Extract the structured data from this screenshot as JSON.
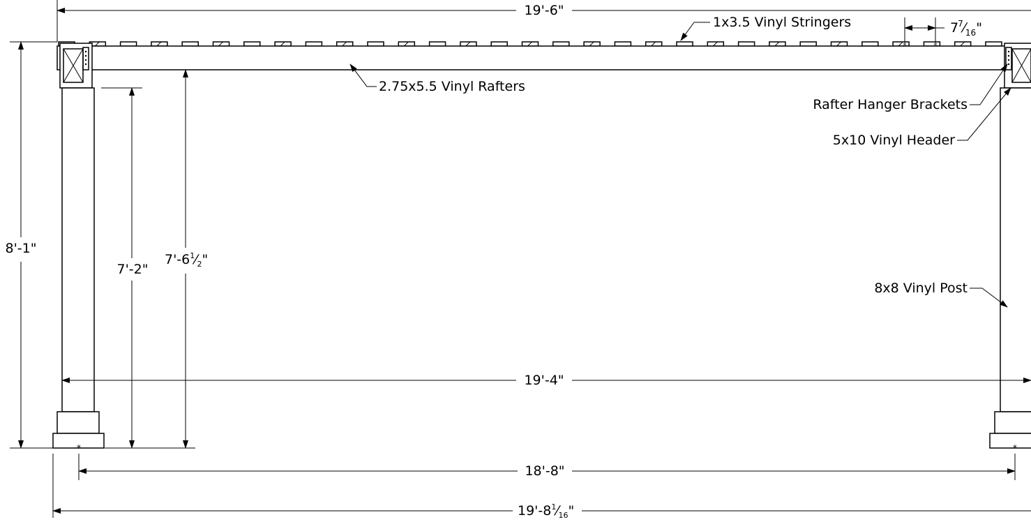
{
  "drawing": {
    "dimensions": {
      "overall_top": "19'-6\"",
      "stringer_spacing_whole": "7",
      "stringer_spacing_num": "7",
      "stringer_spacing_den": "16",
      "stringer_spacing_unit": "\"",
      "overall_height": "8'-1\"",
      "clear_height_main": "7'-2\"",
      "rafter_height_main": "7'-6",
      "rafter_height_num": "1",
      "rafter_height_den": "2",
      "rafter_height_unit": "\"",
      "inner_span": "19'-4\"",
      "post_centers": "18'-8\"",
      "overall_base_main": "19'-8",
      "overall_base_num": "1",
      "overall_base_den": "16",
      "overall_base_unit": "\""
    },
    "labels": {
      "stringers": "1x3.5 Vinyl Stringers",
      "rafters": "2.75x5.5 Vinyl Rafters",
      "brackets": "Rafter Hanger Brackets",
      "header": "5x10 Vinyl Header",
      "post": "8x8 Vinyl Post"
    }
  }
}
